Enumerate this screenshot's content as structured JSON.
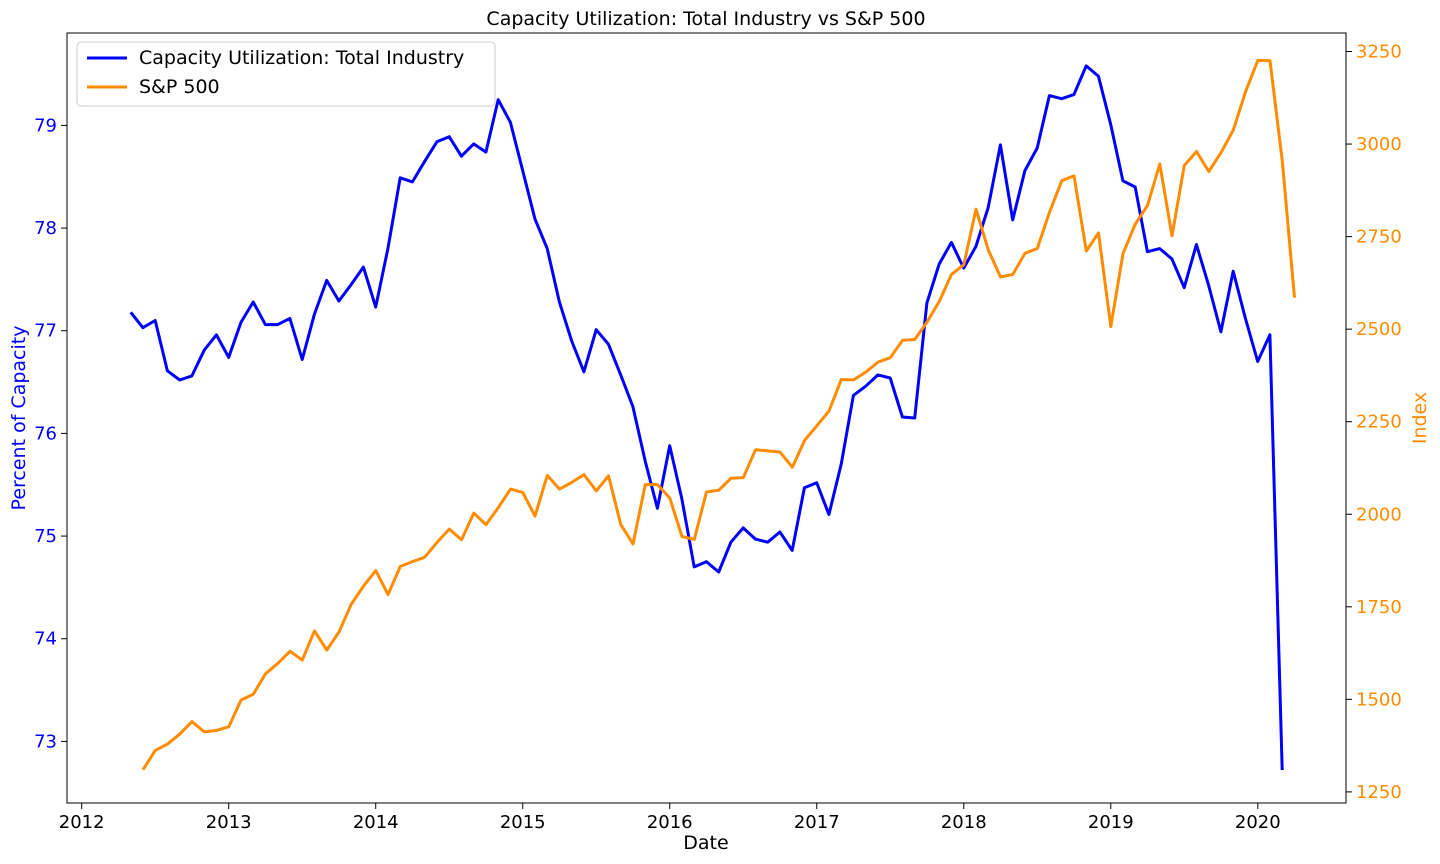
{
  "chart_data": {
    "type": "line",
    "title": "Capacity Utilization: Total Industry vs S&P 500",
    "xlabel": "Date",
    "ylabel_left": "Percent of Capacity",
    "ylabel_right": "Index",
    "xlim": [
      2011.9,
      2020.6
    ],
    "ylim_left": [
      72.4,
      79.9
    ],
    "ylim_right": [
      1220,
      3300
    ],
    "x_ticks": [
      2012,
      2013,
      2014,
      2015,
      2016,
      2017,
      2018,
      2019,
      2020
    ],
    "x_tick_labels": [
      "2012",
      "2013",
      "2014",
      "2015",
      "2016",
      "2017",
      "2018",
      "2019",
      "2020"
    ],
    "y_left_ticks": [
      73,
      74,
      75,
      76,
      77,
      78,
      79
    ],
    "y_left_tick_labels": [
      "73",
      "74",
      "75",
      "76",
      "77",
      "78",
      "79"
    ],
    "y_right_ticks": [
      1250,
      1500,
      1750,
      2000,
      2250,
      2500,
      2750,
      3000,
      3250
    ],
    "y_right_tick_labels": [
      "1250",
      "1500",
      "1750",
      "2000",
      "2250",
      "2500",
      "2750",
      "3000",
      "3250"
    ],
    "grid": false,
    "legend_position": "top-left",
    "series": [
      {
        "name": "Capacity Utilization: Total Industry",
        "axis": "left",
        "color": "#0000ff",
        "x_start": 2012.333,
        "x_step": 0.08333,
        "values": [
          77.18,
          77.03,
          77.1,
          76.61,
          76.52,
          76.56,
          76.81,
          76.96,
          76.74,
          77.08,
          77.28,
          77.06,
          77.06,
          77.12,
          76.72,
          77.16,
          77.49,
          77.29,
          77.45,
          77.62,
          77.23,
          77.8,
          78.49,
          78.45,
          78.65,
          78.84,
          78.89,
          78.7,
          78.82,
          78.74,
          79.25,
          79.03,
          78.56,
          78.09,
          77.8,
          77.28,
          76.9,
          76.6,
          77.01,
          76.87,
          76.57,
          76.26,
          75.73,
          75.27,
          75.88,
          75.36,
          74.7,
          74.75,
          74.65,
          74.94,
          75.08,
          74.97,
          74.94,
          75.04,
          74.86,
          75.47,
          75.52,
          75.21,
          75.7,
          76.37,
          76.46,
          76.57,
          76.54,
          76.16,
          76.15,
          77.27,
          77.65,
          77.86,
          77.61,
          77.82,
          78.2,
          78.81,
          78.08,
          78.56,
          78.78,
          79.29,
          79.26,
          79.3,
          79.58,
          79.48,
          79.01,
          78.46,
          78.4,
          77.77,
          77.8,
          77.7,
          77.42,
          77.84,
          77.44,
          76.99,
          77.58,
          77.12,
          76.7,
          76.96,
          72.72
        ]
      },
      {
        "name": "S&P 500",
        "axis": "right",
        "color": "#ff8c00",
        "x_start": 2012.417,
        "x_step": 0.08333,
        "values": [
          1310,
          1362,
          1379,
          1406,
          1440,
          1412,
          1416,
          1426,
          1498,
          1514,
          1569,
          1597,
          1630,
          1606,
          1685,
          1633,
          1682,
          1757,
          1806,
          1848,
          1783,
          1859,
          1872,
          1884,
          1924,
          1960,
          1931,
          2003,
          1972,
          2018,
          2068,
          2059,
          1995,
          2105,
          2068,
          2086,
          2107,
          2063,
          2104,
          1972,
          1920,
          2080,
          2080,
          2044,
          1940,
          1932,
          2060,
          2065,
          2097,
          2099,
          2174,
          2171,
          2168,
          2127,
          2199,
          2239,
          2279,
          2364,
          2363,
          2384,
          2411,
          2423,
          2470,
          2472,
          2519,
          2575,
          2648,
          2674,
          2824,
          2714,
          2641,
          2648,
          2705,
          2718,
          2816,
          2901,
          2914,
          2711,
          2760,
          2507,
          2704,
          2784,
          2834,
          2946,
          2752,
          2942,
          2980,
          2926,
          2977,
          3038,
          3141,
          3226,
          3225,
          2954,
          2585
        ]
      }
    ]
  }
}
